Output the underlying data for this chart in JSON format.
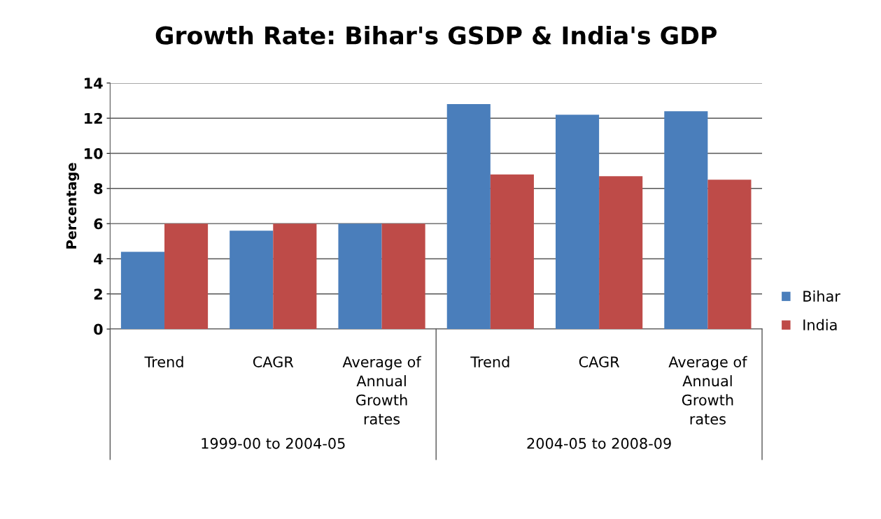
{
  "chart_data": {
    "type": "bar",
    "title": "Growth Rate: Bihar's GSDP & India's GDP",
    "ylabel": "Percentage",
    "categories": [
      "Trend",
      "CAGR",
      "Average of\nAnnual\nGrowth\nrates",
      "Trend",
      "CAGR",
      "Average of\nAnnual\nGrowth\nrates"
    ],
    "series": [
      {
        "name": "Bihar",
        "color": "#4a7ebb",
        "values": [
          4.4,
          5.6,
          6.0,
          12.8,
          12.2,
          12.4
        ]
      },
      {
        "name": "India",
        "color": "#be4b48",
        "values": [
          6.0,
          6.0,
          6.0,
          8.8,
          8.7,
          8.5
        ]
      }
    ],
    "annotations": [
      "1999-00 to 2004-05",
      "2004-05 to 2008-09"
    ],
    "ylim": [
      0,
      14
    ],
    "yticks": [
      0,
      2,
      4,
      6,
      8,
      10,
      12,
      14
    ],
    "grid": "y",
    "legend": "right"
  }
}
